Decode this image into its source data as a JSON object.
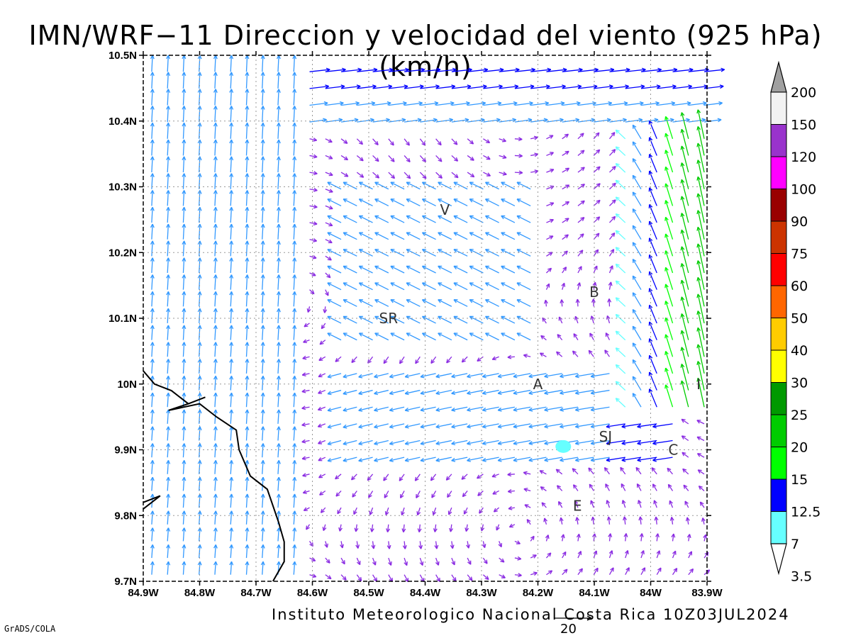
{
  "title": "IMN/WRF−11 Direccion y velocidad del viento (925 hPa)(km/h)",
  "footer": "Instituto Meteorologico Nacional Costa Rica 10Z03JUL2024",
  "credit": "GrADS/COLA",
  "reference_vector": {
    "label": "20",
    "speed_kmh": 20
  },
  "map": {
    "lon_range": [
      -84.9,
      -83.9
    ],
    "lat_range": [
      9.7,
      10.5
    ],
    "x_ticks": [
      "84.9W",
      "84.8W",
      "84.7W",
      "84.6W",
      "84.5W",
      "84.4W",
      "84.3W",
      "84.2W",
      "84.1W",
      "84W",
      "83.9W"
    ],
    "y_ticks": [
      "9.7N",
      "9.8N",
      "9.9N",
      "10N",
      "10.1N",
      "10.2N",
      "10.3N",
      "10.4N",
      "10.5N"
    ],
    "grid": true,
    "coastline": [
      [
        -84.9,
        10.02
      ],
      [
        -84.88,
        10.0
      ],
      [
        -84.85,
        9.99
      ],
      [
        -84.82,
        9.97
      ],
      [
        -84.79,
        9.98
      ],
      [
        -84.82,
        9.97
      ],
      [
        -84.855,
        9.96
      ],
      [
        -84.8,
        9.97
      ],
      [
        -84.77,
        9.95
      ],
      [
        -84.735,
        9.93
      ],
      [
        -84.73,
        9.9
      ],
      [
        -84.71,
        9.86
      ],
      [
        -84.68,
        9.84
      ],
      [
        -84.66,
        9.79
      ],
      [
        -84.65,
        9.76
      ],
      [
        -84.65,
        9.73
      ],
      [
        -84.67,
        9.7
      ]
    ],
    "gulf_point": [
      [
        -84.9,
        9.81
      ],
      [
        -84.87,
        9.83
      ],
      [
        -84.9,
        9.82
      ]
    ],
    "station_labels": [
      {
        "text": "V",
        "lon": -84.365,
        "lat": 10.265
      },
      {
        "text": "B",
        "lon": -84.1,
        "lat": 10.14
      },
      {
        "text": "SR",
        "lon": -84.465,
        "lat": 10.1
      },
      {
        "text": "A",
        "lon": -84.2,
        "lat": 10.0
      },
      {
        "text": "I",
        "lon": -83.915,
        "lat": 10.0
      },
      {
        "text": "SJ",
        "lon": -84.08,
        "lat": 9.92
      },
      {
        "text": "C",
        "lon": -83.96,
        "lat": 9.9
      },
      {
        "text": "E",
        "lon": -84.13,
        "lat": 9.815
      }
    ],
    "lake": {
      "lon": -84.155,
      "lat": 9.905
    }
  },
  "colorbar": {
    "levels": [
      "3.5",
      "7",
      "12.5",
      "15",
      "20",
      "25",
      "30",
      "40",
      "50",
      "60",
      "75",
      "90",
      "100",
      "120",
      "150",
      "200"
    ],
    "colors": [
      "#66ffff",
      "#3399ff",
      "#0000ff",
      "#00ff00",
      "#00cc00",
      "#009900",
      "#ffff00",
      "#ffcc00",
      "#ff6600",
      "#ff0000",
      "#cc3300",
      "#990000",
      "#ff00ff",
      "#9933cc",
      "#f2f2f2",
      "#a0a0a0"
    ]
  }
}
